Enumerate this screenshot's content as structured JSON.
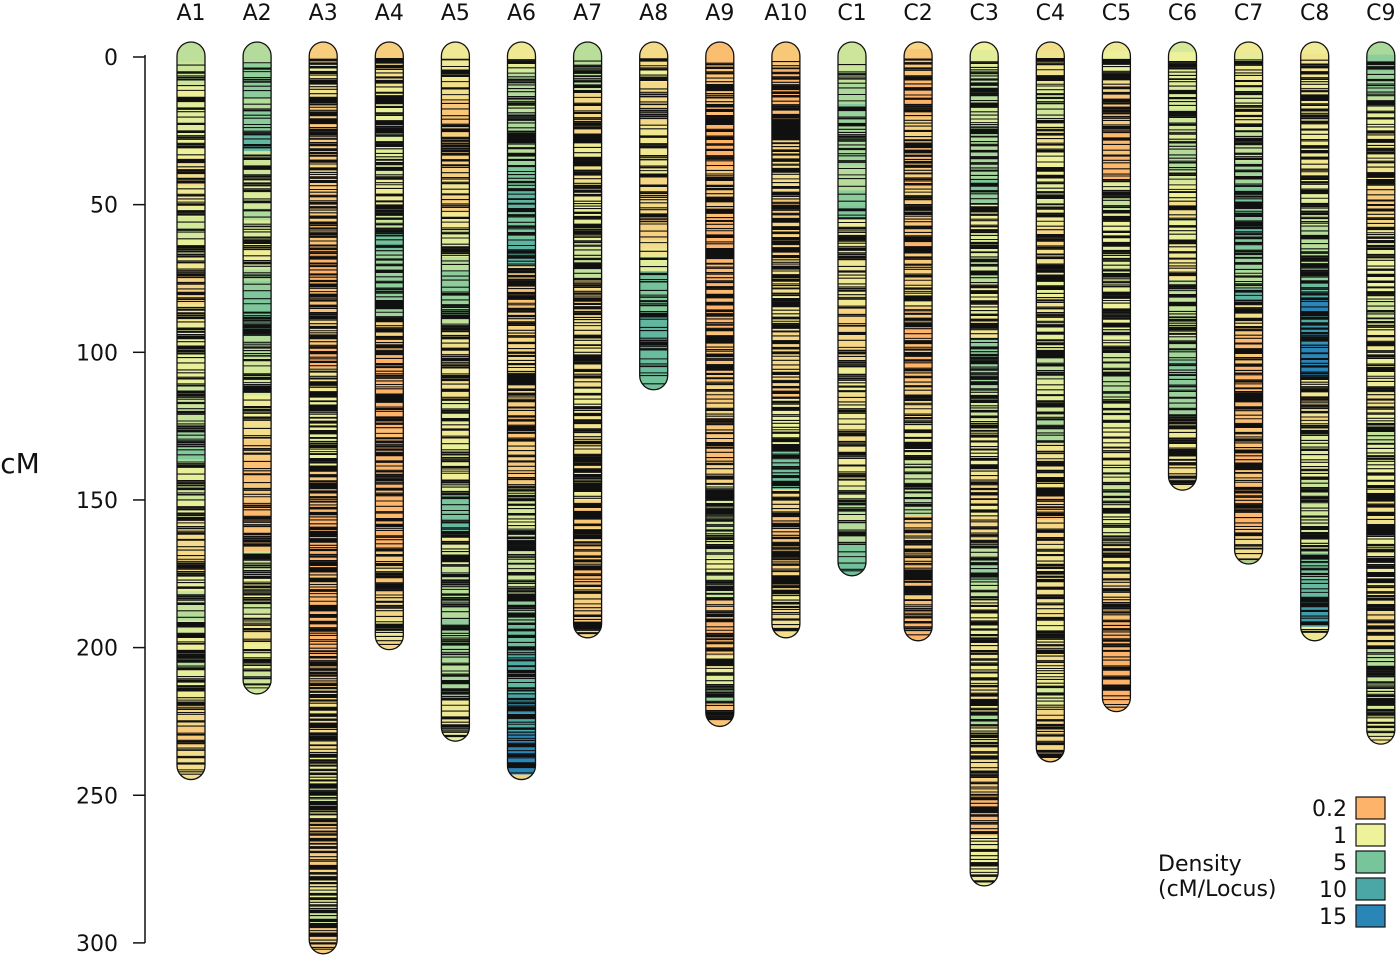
{
  "chart_data": {
    "type": "linkage-map",
    "ylabel": "cM",
    "yticks": [
      0,
      50,
      100,
      150,
      200,
      250,
      300
    ],
    "ylim": [
      0,
      300
    ],
    "linkage_groups": [
      {
        "name": "A1",
        "length": 243,
        "base_density": 1.1,
        "marker_density": 1.5
      },
      {
        "name": "A2",
        "length": 214,
        "base_density": 1.6,
        "marker_density": 1.3
      },
      {
        "name": "A3",
        "length": 302,
        "base_density": 0.35,
        "marker_density": 2.5
      },
      {
        "name": "A4",
        "length": 199,
        "base_density": 0.45,
        "marker_density": 1.9
      },
      {
        "name": "A5",
        "length": 230,
        "base_density": 0.8,
        "marker_density": 1.5
      },
      {
        "name": "A6",
        "length": 243,
        "base_density": 0.45,
        "marker_density": 2.0
      },
      {
        "name": "A7",
        "length": 195,
        "base_density": 0.5,
        "marker_density": 1.9
      },
      {
        "name": "A8",
        "length": 111,
        "base_density": 0.5,
        "marker_density": 1.2
      },
      {
        "name": "A9",
        "length": 225,
        "base_density": 0.3,
        "marker_density": 2.0
      },
      {
        "name": "A10",
        "length": 195,
        "base_density": 0.5,
        "marker_density": 2.3
      },
      {
        "name": "C1",
        "length": 174,
        "base_density": 0.9,
        "marker_density": 1.4
      },
      {
        "name": "C2",
        "length": 196,
        "base_density": 0.35,
        "marker_density": 2.0
      },
      {
        "name": "C3",
        "length": 279,
        "base_density": 0.9,
        "marker_density": 2.1
      },
      {
        "name": "C4",
        "length": 237,
        "base_density": 0.7,
        "marker_density": 1.8
      },
      {
        "name": "C5",
        "length": 220,
        "base_density": 1.2,
        "marker_density": 1.7
      },
      {
        "name": "C6",
        "length": 145,
        "base_density": 0.8,
        "marker_density": 1.8
      },
      {
        "name": "C7",
        "length": 170,
        "base_density": 0.6,
        "marker_density": 2.0
      },
      {
        "name": "C8",
        "length": 196,
        "base_density": 0.8,
        "marker_density": 2.0
      },
      {
        "name": "C9",
        "length": 231,
        "base_density": 1.0,
        "marker_density": 1.9
      }
    ],
    "legend": {
      "title_line1": "Density",
      "title_line2": "(cM/Locus)",
      "entries": [
        {
          "label": "0.2",
          "value": 0.2,
          "color": "#fdb46a"
        },
        {
          "label": "1",
          "value": 1,
          "color": "#eef29a"
        },
        {
          "label": "5",
          "value": 5,
          "color": "#78c59b"
        },
        {
          "label": "10",
          "value": 10,
          "color": "#4aa7a5"
        },
        {
          "label": "15",
          "value": 15,
          "color": "#2b86b8"
        }
      ],
      "placement": "bottom-right"
    }
  }
}
